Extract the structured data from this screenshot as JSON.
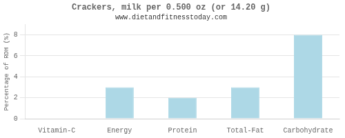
{
  "chart_data": {
    "type": "bar",
    "title": "Crackers, milk per 0.500 oz (or 14.20 g)",
    "subtitle": "www.dietandfitnesstoday.com",
    "categories": [
      "Vitamin-C",
      "Energy",
      "Protein",
      "Total-Fat",
      "Carbohydrate"
    ],
    "values": [
      0,
      3,
      2,
      3,
      8
    ],
    "color": "#add8e6",
    "ylabel": "Percentage of RDH (%)",
    "ylim": [
      0,
      9
    ],
    "yticks": [
      0,
      2,
      4,
      6,
      8
    ],
    "grid": true
  }
}
